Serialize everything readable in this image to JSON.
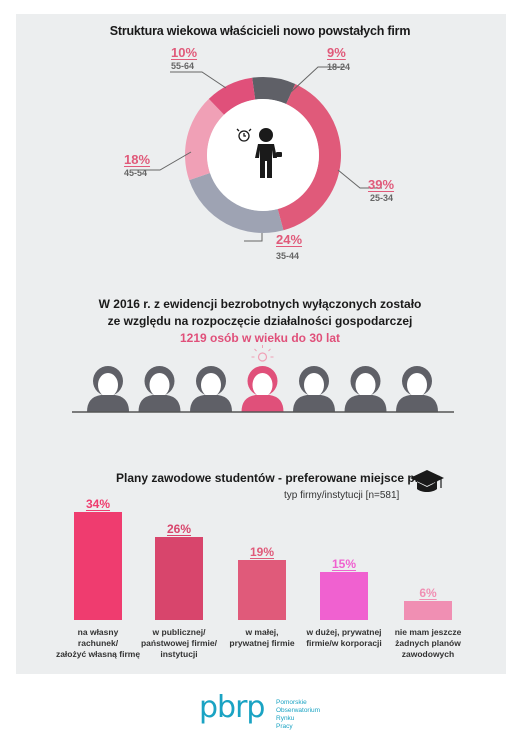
{
  "colors": {
    "pink": "#e05a7a",
    "dark_pink": "#d8456c",
    "light_pink": "#f0a0b6",
    "gray_blue": "#9ea3b3",
    "dark_gray": "#5f6067",
    "magenta": "#f061d0",
    "bar1": "#ef3c6f",
    "bar2": "#d8456c",
    "bar3": "#e05a7a",
    "bar4": "#f061d0",
    "bar5": "#f08fb3",
    "logo": "#1aa3c3"
  },
  "section1": {
    "title": "Struktura wiekowa właścicieli nowo powstałych firm"
  },
  "section2": {
    "line1": "W 2016 r. z ewidencji bezrobotnych wyłączonych zostało",
    "line2": "ze względu na rozpoczęcie działalności gospodarczej",
    "highlight": "1219 osób w wieku do 30 lat",
    "people_count": 7,
    "highlighted_index": 3
  },
  "section3": {
    "title": "Plany zawodowe studentów - preferowane miejsce pracy",
    "subtitle": "typ firmy/instytucji [n=581]"
  },
  "logo": {
    "mark": "pbrp",
    "line1": "Pomorskie",
    "line2": "Obserwatorium",
    "line3": "Rynku",
    "line4": "Pracy"
  },
  "chart_data": [
    {
      "type": "pie",
      "title": "Struktura wiekowa właścicieli nowo powstałych firm",
      "categories": [
        "18-24",
        "25-34",
        "35-44",
        "45-54",
        "55-64"
      ],
      "values": [
        9,
        39,
        24,
        18,
        10
      ],
      "labels": [
        "9%",
        "39%",
        "24%",
        "18%",
        "10%"
      ],
      "colors": [
        "#5f6067",
        "#e05a7a",
        "#9ea3b3",
        "#f0a0b6",
        "#e0507a"
      ]
    },
    {
      "type": "bar",
      "title": "Plany zawodowe studentów - preferowane miejsce pracy",
      "subtitle": "typ firmy/instytucji [n=581]",
      "categories": [
        [
          "na własny",
          "rachunek/",
          "założyć własną firmę"
        ],
        [
          "w publicznej/",
          "państwowej firmie/",
          "instytucji"
        ],
        [
          "w małej,",
          "prywatnej firmie"
        ],
        [
          "w dużej, prywatnej",
          "firmie/w korporacji"
        ],
        [
          "nie mam jeszcze",
          "żadnych planów",
          "zawodowych"
        ]
      ],
      "values": [
        34,
        26,
        19,
        15,
        6
      ],
      "labels": [
        "34%",
        "26%",
        "19%",
        "15%",
        "6%"
      ],
      "colors": [
        "#ef3c6f",
        "#d8456c",
        "#e05a7a",
        "#f061d0",
        "#f08fb3"
      ],
      "ylim": [
        0,
        34
      ]
    }
  ]
}
